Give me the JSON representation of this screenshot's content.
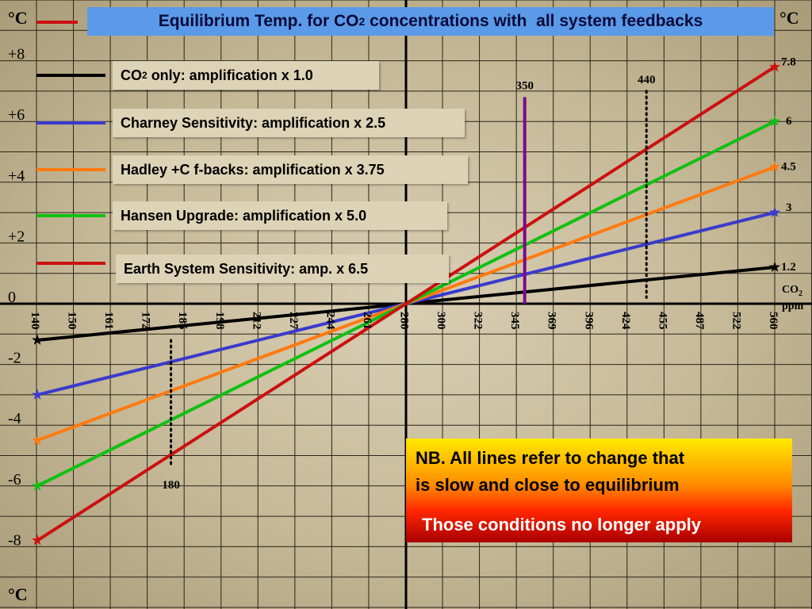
{
  "title": {
    "main": "Equilibrium Temp. for CO",
    "sub": "2",
    "rest": " concentrations with  all system feedbacks"
  },
  "unit_left": "°C",
  "unit_right": "°C",
  "unit_bottom_left": "°C",
  "co2_axis_label": {
    "main": "CO",
    "sub": "2",
    "unit": "ppm"
  },
  "legend": [
    {
      "pre": "CO",
      "sub": "2",
      "post": " only: amplification x 1.0",
      "color": "#000000"
    },
    {
      "pre": "Charney Sensitivity: amplification x 2.5",
      "sub": "",
      "post": "",
      "color": "#3a3acc"
    },
    {
      "pre": "Hadley +C f-backs: amplification x 3.75",
      "sub": "",
      "post": "",
      "color": "#ff7a10"
    },
    {
      "pre": "Hansen Upgrade: amplification x 5.0",
      "sub": "",
      "post": "",
      "color": "#12c012"
    },
    {
      "pre": "Earth System Sensitivity: amp. x 6.5",
      "sub": "",
      "post": "",
      "color": "#cc1010"
    }
  ],
  "note": {
    "line1": "NB. All lines refer to change that",
    "line2": "is slow and close to equilibrium",
    "line3": "Those conditions no longer apply"
  },
  "chart_data": {
    "type": "line",
    "x_axis_label": "CO2 ppm",
    "x_tick_labels": [
      "140",
      "150",
      "161",
      "172",
      "185",
      "198",
      "212",
      "227",
      "244",
      "261",
      "280",
      "300",
      "322",
      "345",
      "369",
      "396",
      "424",
      "455",
      "487",
      "522",
      "560"
    ],
    "y_tick_labels": [
      "+8",
      "+6",
      "+4",
      "+2",
      "0",
      "-2",
      "-4",
      "-6",
      "-8"
    ],
    "y_ticks": [
      8,
      6,
      4,
      2,
      0,
      -2,
      -4,
      -6,
      -8
    ],
    "ylim": [
      -9.5,
      9.5
    ],
    "x_log_base2_range": [
      -1,
      1
    ],
    "grid": true,
    "series": [
      {
        "name": "CO2 only: amplification x 1.0",
        "color": "#000000",
        "x": [
          140,
          280,
          560
        ],
        "y": [
          -1.2,
          0,
          1.2
        ],
        "end_label": "1.2"
      },
      {
        "name": "Charney Sensitivity: amplification x 2.5",
        "color": "#3a3acc",
        "x": [
          140,
          280,
          560
        ],
        "y": [
          -3,
          0,
          3
        ],
        "end_label": "3"
      },
      {
        "name": "Hadley +C f-backs: amplification x 3.75",
        "color": "#ff7a10",
        "x": [
          140,
          280,
          560
        ],
        "y": [
          -4.5,
          0,
          4.5
        ],
        "end_label": "4.5"
      },
      {
        "name": "Hansen Upgrade: amplification x 5.0",
        "color": "#12c012",
        "x": [
          140,
          280,
          560
        ],
        "y": [
          -6,
          0,
          6
        ],
        "end_label": "6"
      },
      {
        "name": "Earth System Sensitivity: amp. x 6.5",
        "color": "#cc1010",
        "x": [
          140,
          280,
          560
        ],
        "y": [
          -7.8,
          0,
          7.8
        ],
        "end_label": "7.8"
      }
    ],
    "markers": [
      {
        "label": "350",
        "x": 350,
        "style": "solid",
        "color": "#7a0a8a",
        "y_top": 6.8,
        "y_bottom": 0
      },
      {
        "label": "440",
        "x": 440,
        "style": "dotted",
        "color": "#000000",
        "y_top": 7.0,
        "y_bottom": 0.2
      },
      {
        "label": "180",
        "x": 180,
        "style": "dotted",
        "color": "#000000",
        "y_top": -1.2,
        "y_bottom": -5.4
      }
    ]
  }
}
